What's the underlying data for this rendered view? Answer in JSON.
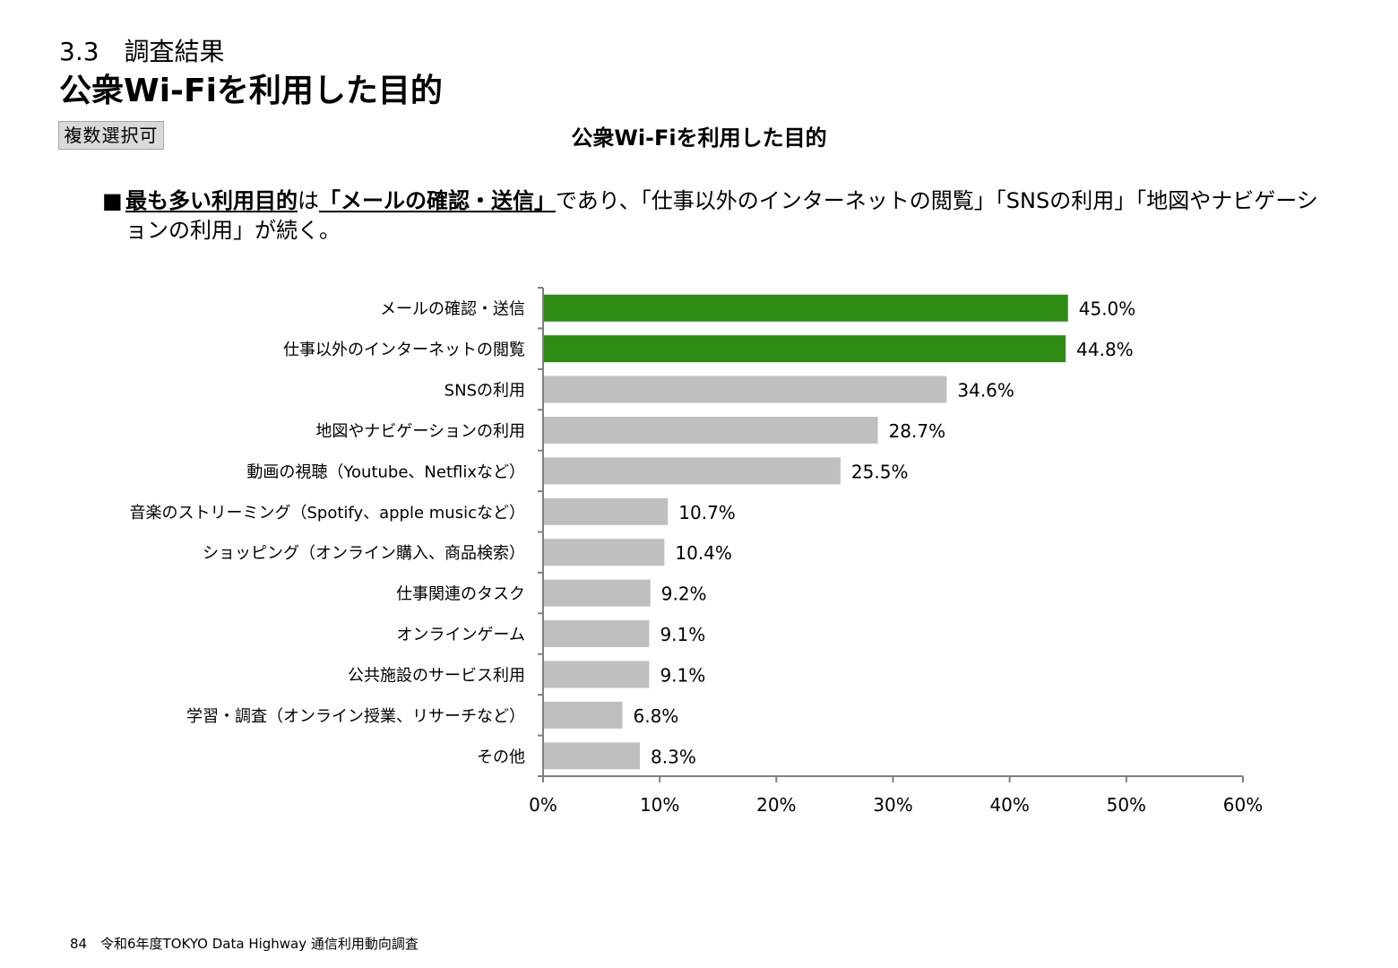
{
  "header": {
    "section": "3.3　調査結果",
    "title": "公衆Wi-Fiを利用した目的",
    "badge": "複数選択可"
  },
  "summary": {
    "bullet": "■",
    "part1": "最も多い利用目的",
    "part2": "は",
    "part3": "「メールの確認・送信」",
    "part4": "であり、「仕事以外のインターネットの閲覧」「SNSの利用」「地図やナビゲーションの利用」が続く。"
  },
  "chart_data": {
    "type": "bar",
    "orientation": "horizontal",
    "title": "公衆Wi-Fiを利用した目的",
    "categories": [
      "メールの確認・送信",
      "仕事以外のインターネットの閲覧",
      "SNSの利用",
      "地図やナビゲーションの利用",
      "動画の視聴（Youtube、Netflixなど）",
      "音楽のストリーミング（Spotify、apple musicなど）",
      "ショッピング（オンライン購入、商品検索）",
      "仕事関連のタスク",
      "オンラインゲーム",
      "公共施設のサービス利用",
      "学習・調査（オンライン授業、リサーチなど）",
      "その他"
    ],
    "values": [
      45.0,
      44.8,
      34.6,
      28.7,
      25.5,
      10.7,
      10.4,
      9.2,
      9.1,
      9.1,
      6.8,
      8.3
    ],
    "value_labels": [
      "45.0%",
      "44.8%",
      "34.6%",
      "28.7%",
      "25.5%",
      "10.7%",
      "10.4%",
      "9.2%",
      "9.1%",
      "9.1%",
      "6.8%",
      "8.3%"
    ],
    "highlight_count": 2,
    "colors": {
      "highlight": "#2e8b14",
      "default": "#bfbfbf",
      "axis": "#7f7f7f"
    },
    "xlim": [
      0,
      60
    ],
    "xticks": [
      0,
      10,
      20,
      30,
      40,
      50,
      60
    ],
    "xtick_labels": [
      "0%",
      "10%",
      "20%",
      "30%",
      "40%",
      "50%",
      "60%"
    ],
    "xlabel": "",
    "ylabel": "",
    "grid": false,
    "legend": "none"
  },
  "footer": {
    "page": "84",
    "source": "令和6年度TOKYO Data Highway 通信利用動向調査"
  }
}
